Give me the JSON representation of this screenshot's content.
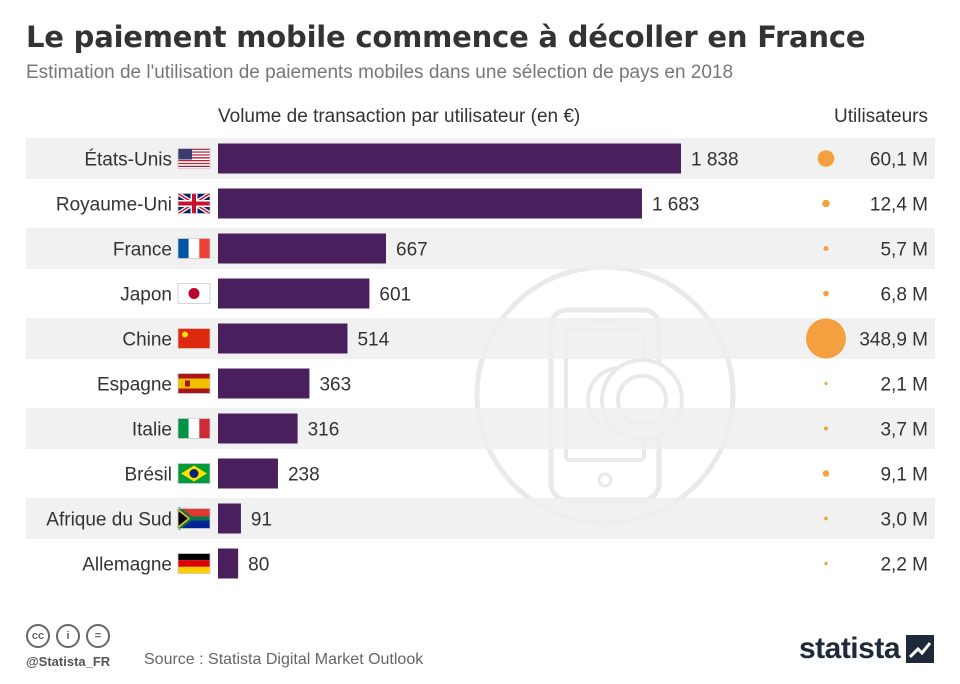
{
  "title": "Le paiement mobile commence à décoller en France",
  "subtitle": "Estimation de l'utilisation de paiements mobiles dans une sélection de pays en 2018",
  "chart_data": {
    "type": "bar",
    "orientation": "horizontal",
    "xlabel": "Volume de transaction par utilisateur (en €)",
    "secondary_label": "Utilisateurs",
    "categories": [
      "États-Unis",
      "Royaume-Uni",
      "France",
      "Japon",
      "Chine",
      "Espagne",
      "Italie",
      "Brésil",
      "Afrique du Sud",
      "Allemagne"
    ],
    "flags": [
      "flag-us",
      "flag-uk",
      "flag-fr",
      "flag-jp",
      "flag-cn",
      "flag-es",
      "flag-it",
      "flag-br",
      "flag-za",
      "flag-de"
    ],
    "values": [
      1838,
      1683,
      667,
      601,
      514,
      363,
      316,
      238,
      91,
      80
    ],
    "value_labels": [
      "1 838",
      "1 683",
      "667",
      "601",
      "514",
      "363",
      "316",
      "238",
      "91",
      "80"
    ],
    "users_millions": [
      60.1,
      12.4,
      5.7,
      6.8,
      348.9,
      2.1,
      3.7,
      9.1,
      3.0,
      2.2
    ],
    "users_labels": [
      "60,1 M",
      "12,4 M",
      "5,7 M",
      "6,8 M",
      "348,9 M",
      "2,1 M",
      "3,7 M",
      "9,1 M",
      "3,0 M",
      "2,2 M"
    ],
    "xlim": [
      0,
      1838
    ],
    "bar_color": "#4a1f5e",
    "bubble_color": "#f4a040",
    "row_stripe_color": "#efefef",
    "background_icon": "smartphone-euro-coin-icon"
  },
  "footer": {
    "handle": "@Statista_FR",
    "source": "Source : Statista Digital Market Outlook",
    "brand": "statista",
    "license_icons": [
      "cc-icon",
      "by-icon",
      "nd-icon"
    ],
    "cc_labels": [
      "cc",
      "i",
      "="
    ]
  }
}
